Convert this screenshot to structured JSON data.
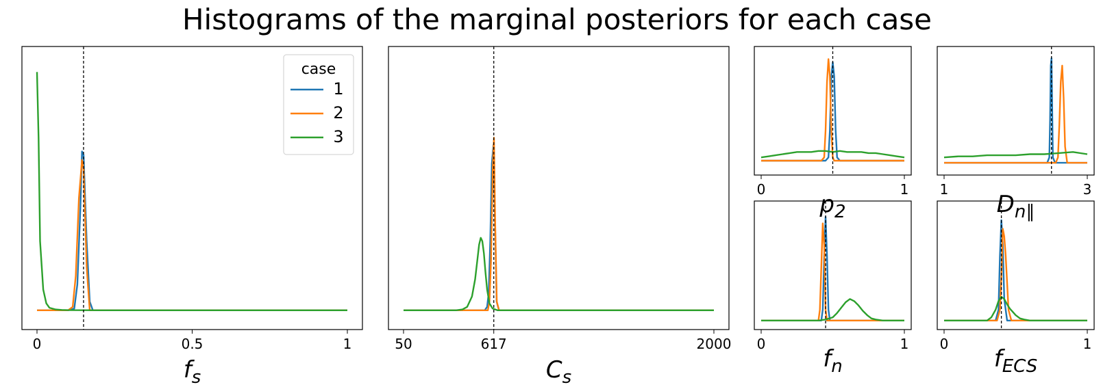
{
  "title": "Histograms of the marginal posteriors for each case",
  "colors": {
    "case1": "#1f77b4",
    "case2": "#ff7f0e",
    "case3": "#2ca02c",
    "truth_line": "#000000"
  },
  "legend": {
    "title": "case",
    "entries": [
      {
        "label": "1",
        "color": "#1f77b4"
      },
      {
        "label": "2",
        "color": "#ff7f0e"
      },
      {
        "label": "3",
        "color": "#2ca02c"
      }
    ]
  },
  "chart_data": [
    {
      "type": "line",
      "xlabel": "f_s",
      "xticks": [
        0,
        0.5,
        1
      ],
      "xtick_labels": [
        "0",
        "0.5",
        "1"
      ],
      "xlim": [
        0,
        1
      ],
      "ylim": [
        0,
        1
      ],
      "truth": 0.15,
      "legend": true,
      "series": [
        {
          "name": "1",
          "x": [
            0,
            0.1,
            0.12,
            0.13,
            0.14,
            0.145,
            0.15,
            0.16,
            0.17,
            0.18,
            1.0
          ],
          "values": [
            0,
            0,
            0.01,
            0.15,
            0.6,
            0.92,
            0.9,
            0.4,
            0.05,
            0,
            0
          ]
        },
        {
          "name": "2",
          "x": [
            0,
            0.1,
            0.115,
            0.125,
            0.135,
            0.145,
            0.15,
            0.16,
            0.17,
            1.0
          ],
          "values": [
            0,
            0,
            0.02,
            0.2,
            0.65,
            0.87,
            0.82,
            0.25,
            0,
            0
          ]
        },
        {
          "name": "3",
          "x": [
            0,
            0.005,
            0.01,
            0.02,
            0.03,
            0.04,
            0.06,
            0.08,
            0.1,
            0.2,
            0.5,
            1.0
          ],
          "values": [
            1.38,
            1.0,
            0.4,
            0.12,
            0.04,
            0.015,
            0.005,
            0.002,
            0.001,
            0,
            0,
            0
          ]
        }
      ]
    },
    {
      "type": "line",
      "xlabel": "C_s",
      "xticks": [
        50,
        617,
        2000
      ],
      "xtick_labels": [
        "50",
        "617",
        "2000"
      ],
      "xlim": [
        50,
        2000
      ],
      "ylim": [
        0,
        1
      ],
      "truth": 617,
      "series": [
        {
          "name": "1",
          "x": [
            50,
            560,
            575,
            585,
            595,
            605,
            615,
            625,
            635,
            650,
            2000
          ],
          "values": [
            0,
            0,
            0.02,
            0.1,
            0.4,
            0.85,
            0.96,
            0.5,
            0.05,
            0,
            0
          ]
        },
        {
          "name": "2",
          "x": [
            50,
            580,
            590,
            600,
            610,
            618,
            626,
            636,
            650,
            2000
          ],
          "values": [
            0,
            0,
            0.05,
            0.3,
            0.8,
            1.0,
            0.5,
            0.05,
            0,
            0
          ]
        },
        {
          "name": "3",
          "x": [
            50,
            380,
            420,
            450,
            480,
            500,
            515,
            525,
            535,
            545,
            555,
            565,
            575,
            590,
            610,
            640,
            2000
          ],
          "values": [
            0,
            0,
            0.005,
            0.02,
            0.08,
            0.18,
            0.3,
            0.38,
            0.42,
            0.4,
            0.33,
            0.22,
            0.12,
            0.04,
            0.01,
            0,
            0
          ]
        }
      ]
    },
    {
      "type": "line",
      "xlabel": "p_2",
      "xticks": [
        0,
        1
      ],
      "xtick_labels": [
        "0",
        "1"
      ],
      "xlim": [
        0,
        1
      ],
      "ylim": [
        0,
        1
      ],
      "truth": 0.5,
      "series": [
        {
          "name": "1",
          "x": [
            0,
            0.45,
            0.47,
            0.48,
            0.49,
            0.5,
            0.51,
            0.52,
            0.53,
            0.55,
            1
          ],
          "values": [
            0.02,
            0.02,
            0.05,
            0.3,
            0.8,
            0.93,
            0.8,
            0.3,
            0.05,
            0.02,
            0.02
          ]
        },
        {
          "name": "2",
          "x": [
            0,
            0.42,
            0.44,
            0.45,
            0.46,
            0.47,
            0.48,
            0.49,
            0.5,
            0.51,
            1
          ],
          "values": [
            0.02,
            0.02,
            0.05,
            0.3,
            0.75,
            0.96,
            0.8,
            0.3,
            0.05,
            0.02,
            0.02
          ]
        },
        {
          "name": "3",
          "x": [
            0,
            0.05,
            0.1,
            0.15,
            0.2,
            0.25,
            0.3,
            0.35,
            0.4,
            0.45,
            0.5,
            0.55,
            0.6,
            0.65,
            0.7,
            0.75,
            0.8,
            0.85,
            0.9,
            0.95,
            1
          ],
          "values": [
            0.05,
            0.06,
            0.07,
            0.08,
            0.09,
            0.1,
            0.1,
            0.1,
            0.11,
            0.11,
            0.1,
            0.11,
            0.1,
            0.1,
            0.1,
            0.09,
            0.09,
            0.08,
            0.07,
            0.06,
            0.05
          ]
        }
      ]
    },
    {
      "type": "line",
      "xlabel": "D_{n∥}",
      "xticks": [
        1,
        3
      ],
      "xtick_labels": [
        "1",
        "3"
      ],
      "xlim": [
        1,
        3
      ],
      "ylim": [
        0,
        1
      ],
      "truth": 2.5,
      "series": [
        {
          "name": "1",
          "x": [
            1,
            2.44,
            2.47,
            2.48,
            2.49,
            2.5,
            2.51,
            2.52,
            2.55,
            3
          ],
          "values": [
            0,
            0,
            0.05,
            0.4,
            0.9,
            0.97,
            0.5,
            0.05,
            0,
            0
          ]
        },
        {
          "name": "2",
          "x": [
            1,
            2.56,
            2.59,
            2.61,
            2.63,
            2.65,
            2.67,
            2.69,
            2.72,
            3
          ],
          "values": [
            0,
            0,
            0.05,
            0.35,
            0.75,
            0.9,
            0.6,
            0.15,
            0,
            0
          ]
        },
        {
          "name": "3",
          "x": [
            1,
            1.2,
            1.4,
            1.6,
            1.8,
            2.0,
            2.2,
            2.4,
            2.6,
            2.8,
            3
          ],
          "values": [
            0.05,
            0.06,
            0.06,
            0.07,
            0.07,
            0.07,
            0.08,
            0.08,
            0.09,
            0.1,
            0.08
          ]
        }
      ]
    },
    {
      "type": "line",
      "xlabel": "f_n",
      "xticks": [
        0,
        1
      ],
      "xtick_labels": [
        "0",
        "1"
      ],
      "xlim": [
        0,
        1
      ],
      "ylim": [
        0,
        1
      ],
      "truth": 0.45,
      "series": [
        {
          "name": "1",
          "x": [
            0,
            0.42,
            0.43,
            0.44,
            0.45,
            0.46,
            0.47,
            0.48,
            1
          ],
          "values": [
            0,
            0,
            0.1,
            0.6,
            0.96,
            0.6,
            0.1,
            0,
            0
          ]
        },
        {
          "name": "2",
          "x": [
            0,
            0.4,
            0.41,
            0.42,
            0.43,
            0.44,
            0.45,
            0.46,
            1
          ],
          "values": [
            0,
            0,
            0.1,
            0.5,
            0.9,
            0.7,
            0.1,
            0,
            0
          ]
        },
        {
          "name": "3",
          "x": [
            0,
            0.4,
            0.45,
            0.5,
            0.53,
            0.56,
            0.59,
            0.62,
            0.65,
            0.68,
            0.71,
            0.74,
            0.77,
            0.8,
            0.85,
            1
          ],
          "values": [
            0,
            0,
            0.01,
            0.03,
            0.07,
            0.12,
            0.17,
            0.2,
            0.18,
            0.14,
            0.09,
            0.05,
            0.02,
            0.01,
            0,
            0
          ]
        }
      ]
    },
    {
      "type": "line",
      "xlabel": "f_{ECS}",
      "xticks": [
        0,
        1
      ],
      "xtick_labels": [
        "0",
        "1"
      ],
      "xlim": [
        0,
        1
      ],
      "ylim": [
        0,
        1
      ],
      "truth": 0.4,
      "series": [
        {
          "name": "1",
          "x": [
            0,
            0.36,
            0.38,
            0.39,
            0.4,
            0.41,
            0.42,
            0.44,
            1
          ],
          "values": [
            0,
            0,
            0.1,
            0.6,
            0.93,
            0.7,
            0.2,
            0,
            0
          ]
        },
        {
          "name": "2",
          "x": [
            0,
            0.37,
            0.39,
            0.4,
            0.41,
            0.42,
            0.43,
            0.44,
            0.45,
            0.47,
            1
          ],
          "values": [
            0,
            0,
            0.1,
            0.4,
            0.85,
            0.78,
            0.6,
            0.35,
            0.1,
            0,
            0
          ]
        },
        {
          "name": "3",
          "x": [
            0,
            0.3,
            0.33,
            0.36,
            0.38,
            0.4,
            0.42,
            0.44,
            0.46,
            0.48,
            0.5,
            0.53,
            0.56,
            0.6,
            1
          ],
          "values": [
            0,
            0,
            0.03,
            0.1,
            0.18,
            0.22,
            0.2,
            0.15,
            0.11,
            0.08,
            0.05,
            0.02,
            0.01,
            0,
            0
          ]
        }
      ]
    }
  ]
}
